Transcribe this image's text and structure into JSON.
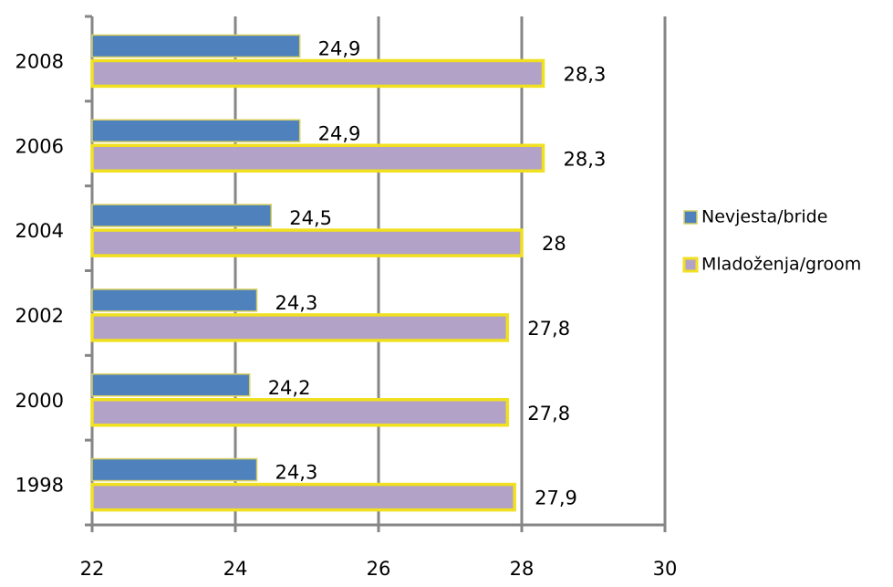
{
  "chart_data": {
    "type": "hbar",
    "categories": [
      "2008",
      "2006",
      "2004",
      "2002",
      "2000",
      "1998"
    ],
    "series": [
      {
        "name": "Nevjesta/bride",
        "color": "#4f81bd",
        "values": [
          24.9,
          24.9,
          24.5,
          24.3,
          24.2,
          24.3
        ],
        "value_labels": [
          "24,9",
          "24,9",
          "24,5",
          "24,3",
          "24,2",
          "24,3"
        ]
      },
      {
        "name": "Mladoženja/groom",
        "color": "#b3a2c7",
        "values": [
          28.3,
          28.3,
          28,
          27.8,
          27.8,
          27.9
        ],
        "value_labels": [
          "28,3",
          "28,3",
          "28",
          "27,8",
          "27,8",
          "27,9"
        ]
      }
    ],
    "xlim": [
      22,
      30
    ],
    "xticks": [
      22,
      24,
      26,
      28,
      30
    ],
    "grid": true,
    "legend": "right"
  }
}
